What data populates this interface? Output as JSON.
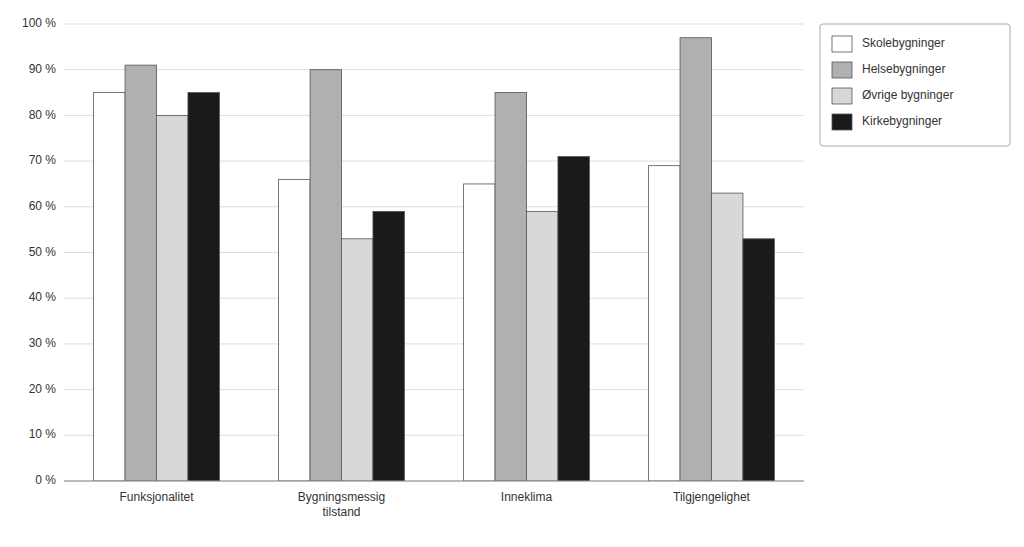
{
  "chart_data": {
    "type": "bar",
    "categories": [
      "Funksjonalitet",
      "Bygningsmessig\ntilstand",
      "Inneklima",
      "Tilgjengelighet"
    ],
    "series": [
      {
        "name": "Skolebygninger",
        "color": "#ffffff",
        "values": [
          85,
          66,
          65,
          69
        ]
      },
      {
        "name": "Helsebygninger",
        "color": "#b0b0b0",
        "values": [
          91,
          90,
          85,
          97
        ]
      },
      {
        "name": "Øvrige bygninger",
        "color": "#d8d8d8",
        "values": [
          80,
          53,
          59,
          63
        ]
      },
      {
        "name": "Kirkebygninger",
        "color": "#1a1a1a",
        "values": [
          85,
          59,
          71,
          53
        ]
      }
    ],
    "ylim": [
      0,
      100
    ],
    "yticks": [
      {
        "value": 0,
        "label": "0 %"
      },
      {
        "value": 10,
        "label": "10 %"
      },
      {
        "value": 20,
        "label": "20 %"
      },
      {
        "value": 30,
        "label": "30 %"
      },
      {
        "value": 40,
        "label": "40 %"
      },
      {
        "value": 50,
        "label": "50 %"
      },
      {
        "value": 60,
        "label": "60 %"
      },
      {
        "value": 70,
        "label": "70 %"
      },
      {
        "value": 80,
        "label": "80 %"
      },
      {
        "value": 90,
        "label": "90 %"
      },
      {
        "value": 100,
        "label": "100 %"
      }
    ],
    "grid": true,
    "legend": "upper right"
  }
}
